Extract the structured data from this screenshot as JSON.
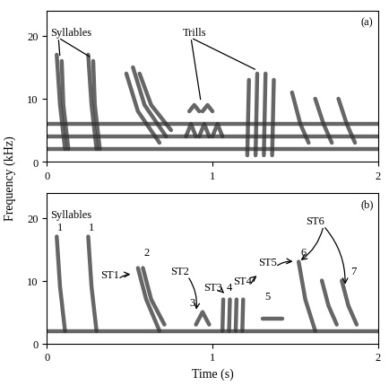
{
  "y_label": "Frequency (kHz)",
  "chart_data": [
    {
      "type": "spectrogram",
      "panel_label": "(a)",
      "xlim": [
        0,
        2
      ],
      "ylim": [
        0,
        24
      ],
      "xticks": [
        0,
        1,
        2
      ],
      "yticks": [
        0,
        10,
        20
      ],
      "color": "#333333",
      "elements": [
        {
          "t": [
            0.0,
            2.0
          ],
          "f": [
            2,
            2
          ]
        },
        {
          "t": [
            0.0,
            2.0
          ],
          "f": [
            4,
            4
          ]
        },
        {
          "t": [
            0.0,
            2.0
          ],
          "f": [
            6,
            6
          ]
        },
        {
          "t": [
            0.06,
            0.08,
            0.11
          ],
          "f": [
            17,
            9,
            2
          ]
        },
        {
          "t": [
            0.09,
            0.1,
            0.13
          ],
          "f": [
            16,
            9,
            2
          ]
        },
        {
          "t": [
            0.25,
            0.27,
            0.3
          ],
          "f": [
            17,
            9,
            2
          ]
        },
        {
          "t": [
            0.28,
            0.29,
            0.32
          ],
          "f": [
            16,
            9,
            2
          ]
        },
        {
          "t": [
            0.48,
            0.55,
            0.68
          ],
          "f": [
            14,
            8,
            3
          ]
        },
        {
          "t": [
            0.52,
            0.59,
            0.72
          ],
          "f": [
            15,
            9,
            4
          ]
        },
        {
          "t": [
            0.56,
            0.63,
            0.75
          ],
          "f": [
            14,
            9,
            5
          ]
        },
        {
          "t": [
            0.84,
            0.87,
            0.9
          ],
          "f": [
            4,
            6,
            4
          ]
        },
        {
          "t": [
            0.92,
            0.95,
            0.98
          ],
          "f": [
            4,
            6,
            4
          ]
        },
        {
          "t": [
            1.0,
            1.03,
            1.06
          ],
          "f": [
            4,
            6,
            4
          ]
        },
        {
          "t": [
            0.86,
            0.89,
            0.92
          ],
          "f": [
            8,
            9,
            8
          ]
        },
        {
          "t": [
            0.94,
            0.97,
            1.0
          ],
          "f": [
            8,
            9,
            8
          ]
        },
        {
          "t": [
            1.21,
            1.22
          ],
          "f": [
            1,
            13
          ]
        },
        {
          "t": [
            1.26,
            1.27
          ],
          "f": [
            1,
            14
          ]
        },
        {
          "t": [
            1.31,
            1.32
          ],
          "f": [
            1,
            14
          ]
        },
        {
          "t": [
            1.36,
            1.37
          ],
          "f": [
            1,
            13
          ]
        },
        {
          "t": [
            1.48,
            1.53,
            1.58
          ],
          "f": [
            11,
            6,
            3
          ]
        },
        {
          "t": [
            1.62,
            1.67,
            1.72
          ],
          "f": [
            10,
            6,
            3
          ]
        },
        {
          "t": [
            1.76,
            1.81,
            1.86
          ],
          "f": [
            10,
            6,
            3
          ]
        }
      ],
      "annotations": [
        {
          "text": "Syllables",
          "x": 0.02,
          "y": 20.5,
          "arrows": [
            [
              0.08,
              16.5
            ],
            [
              0.27,
              16.5
            ]
          ]
        },
        {
          "text": "Trills",
          "x": 0.82,
          "y": 20.5,
          "arrows": [
            [
              0.93,
              9.5
            ],
            [
              1.27,
              14.5
            ]
          ]
        }
      ]
    },
    {
      "type": "spectrogram",
      "panel_label": "(b)",
      "x_label": "Time (s)",
      "xlim": [
        0,
        2
      ],
      "ylim": [
        0,
        24
      ],
      "xticks": [
        0,
        1,
        2
      ],
      "yticks": [
        0,
        10,
        20
      ],
      "color": "#333333",
      "elements": [
        {
          "t": [
            0.06,
            0.08,
            0.11
          ],
          "f": [
            17,
            9,
            2
          ]
        },
        {
          "t": [
            0.25,
            0.27,
            0.3
          ],
          "f": [
            17,
            9,
            2
          ]
        },
        {
          "t": [
            0.55,
            0.6,
            0.68
          ],
          "f": [
            12,
            7,
            2
          ]
        },
        {
          "t": [
            0.58,
            0.63,
            0.71
          ],
          "f": [
            12,
            7,
            3
          ]
        },
        {
          "t": [
            0.9,
            0.94,
            0.98
          ],
          "f": [
            3,
            5,
            3
          ]
        },
        {
          "t": [
            1.06,
            1.065
          ],
          "f": [
            2,
            7
          ]
        },
        {
          "t": [
            1.1,
            1.105
          ],
          "f": [
            2,
            7
          ]
        },
        {
          "t": [
            1.14,
            1.145
          ],
          "f": [
            2,
            7
          ]
        },
        {
          "t": [
            1.18,
            1.185
          ],
          "f": [
            2,
            7
          ]
        },
        {
          "t": [
            1.3,
            1.42
          ],
          "f": [
            4,
            4
          ]
        },
        {
          "t": [
            1.52,
            1.56,
            1.62
          ],
          "f": [
            13,
            7,
            2
          ]
        },
        {
          "t": [
            1.66,
            1.7,
            1.75
          ],
          "f": [
            10,
            6,
            3
          ]
        },
        {
          "t": [
            1.78,
            1.82,
            1.87
          ],
          "f": [
            10,
            6,
            3
          ]
        },
        {
          "t": [
            0.0,
            2.0
          ],
          "f": [
            2,
            2
          ]
        }
      ],
      "annotations": [
        {
          "text": "Syllables",
          "x": 0.02,
          "y": 20.5,
          "arrows": []
        },
        {
          "text": "1",
          "x": 0.08,
          "y": 18.5,
          "arrows": []
        },
        {
          "text": "1",
          "x": 0.27,
          "y": 18.5,
          "arrows": []
        },
        {
          "text": "2",
          "x": 0.6,
          "y": 14.5,
          "arrows": []
        },
        {
          "text": "3",
          "x": 0.88,
          "y": 6.5,
          "arrows": []
        },
        {
          "text": "4",
          "x": 1.1,
          "y": 9,
          "arrows": []
        },
        {
          "text": "5",
          "x": 1.33,
          "y": 7.5,
          "arrows": []
        },
        {
          "text": "6",
          "x": 1.55,
          "y": 14.5,
          "arrows": []
        },
        {
          "text": "7",
          "x": 1.85,
          "y": 11.5,
          "arrows": []
        },
        {
          "text": "ST1",
          "x": 0.38,
          "y": 11,
          "arrows": [
            [
              0.52,
              11
            ]
          ]
        },
        {
          "text": "ST2",
          "x": 0.8,
          "y": 11.5,
          "arrows": [
            [
              0.9,
              5
            ]
          ]
        },
        {
          "text": "ST3",
          "x": 1.0,
          "y": 9,
          "arrows": [
            [
              1.07,
              8
            ]
          ]
        },
        {
          "text": "ST4",
          "x": 1.18,
          "y": 10,
          "arrows": [
            [
              1.28,
              11
            ]
          ]
        },
        {
          "text": "ST5",
          "x": 1.33,
          "y": 13,
          "arrows": [
            [
              1.5,
              13
            ]
          ]
        },
        {
          "text": "ST6",
          "x": 1.62,
          "y": 19.5,
          "arrows": [
            [
              1.52,
              13
            ],
            [
              1.8,
              9
            ]
          ]
        }
      ]
    }
  ]
}
